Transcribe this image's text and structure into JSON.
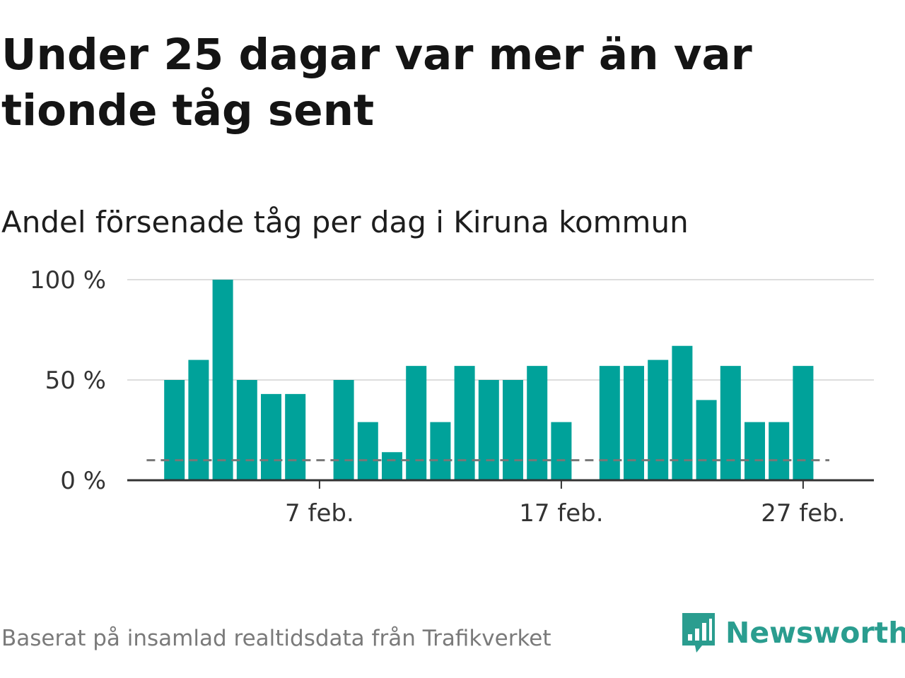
{
  "headline": "Under 25 dagar var mer än var tionde tåg sent",
  "subtitle": "Andel försenade tåg per dag i Kiruna kommun",
  "source": "Baserat på insamlad realtidsdata från Trafikverket",
  "brand": {
    "name": "Newsworthy",
    "logo_icon": "bar-chart-speech-bubble-icon",
    "color": "#2a9d8f"
  },
  "colors": {
    "bar": "#00a29a",
    "reference_line": "#777777",
    "grid": "#dddddd",
    "axis": "#333333"
  },
  "chart_data": {
    "type": "bar",
    "xlabel": "",
    "ylabel": "",
    "ylim": [
      0,
      100
    ],
    "y_unit": "%",
    "y_ticks": [
      {
        "value": 0,
        "label": "0 %"
      },
      {
        "value": 50,
        "label": "50 %"
      },
      {
        "value": 100,
        "label": "100 %"
      }
    ],
    "x_ticks": [
      {
        "category": "7 feb.",
        "label": "7 feb."
      },
      {
        "category": "17 feb.",
        "label": "17 feb."
      },
      {
        "category": "27 feb.",
        "label": "27 feb."
      }
    ],
    "categories": [
      "31 jan.",
      "1 feb.",
      "2 feb.",
      "3 feb.",
      "4 feb.",
      "5 feb.",
      "6 feb.",
      "7 feb.",
      "8 feb.",
      "9 feb.",
      "10 feb.",
      "11 feb.",
      "12 feb.",
      "13 feb.",
      "14 feb.",
      "15 feb.",
      "16 feb.",
      "17 feb.",
      "18 feb.",
      "19 feb.",
      "20 feb.",
      "21 feb.",
      "22 feb.",
      "23 feb.",
      "24 feb.",
      "25 feb.",
      "26 feb.",
      "27 feb.",
      "28 feb."
    ],
    "values": [
      null,
      50,
      60,
      100,
      50,
      43,
      43,
      null,
      50,
      29,
      14,
      57,
      29,
      57,
      50,
      50,
      57,
      29,
      null,
      57,
      57,
      60,
      67,
      40,
      57,
      29,
      29,
      57,
      null
    ],
    "reference_line": {
      "value": 10,
      "style": "dashed"
    },
    "grid": true,
    "legend": "none"
  }
}
